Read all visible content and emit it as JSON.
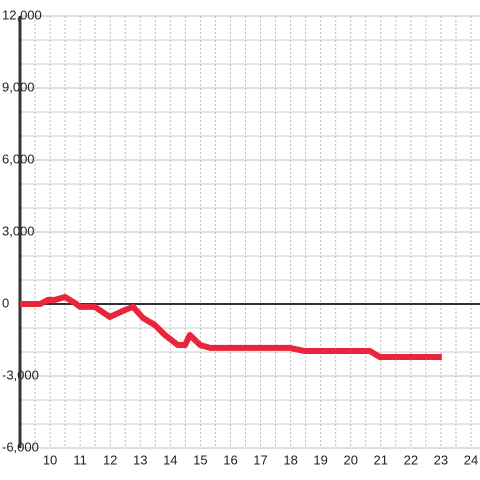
{
  "chart_data": {
    "type": "line",
    "x": [
      9.0,
      9.67,
      9.93,
      10.16,
      10.5,
      10.83,
      11.0,
      11.49,
      11.99,
      12.49,
      12.76,
      13.09,
      13.49,
      13.82,
      14.25,
      14.49,
      14.65,
      14.99,
      15.32,
      17.98,
      18.31,
      18.48,
      20.64,
      20.97,
      23.03
    ],
    "series": [
      {
        "color": "#e8253a",
        "values": [
          0,
          0,
          170,
          170,
          290,
          40,
          -120,
          -120,
          -540,
          -250,
          -120,
          -580,
          -880,
          -1290,
          -1710,
          -1710,
          -1290,
          -1710,
          -1830,
          -1830,
          -1920,
          -1960,
          -1960,
          -2210,
          -2210
        ]
      }
    ],
    "xlim": [
      9,
      24.3
    ],
    "xticks": [
      10,
      11,
      12,
      13,
      14,
      15,
      16,
      17,
      18,
      19,
      20,
      21,
      22,
      23,
      24
    ],
    "minor_xticks": [
      9.5,
      10.5,
      11.5,
      12.5,
      13.5,
      14.5,
      15.5,
      16.5,
      17.5,
      18.5,
      19.5,
      20.5,
      21.5,
      22.5,
      23.5
    ],
    "ylim": [
      -6000,
      12000
    ],
    "yticks": [
      {
        "value": -6000,
        "label": "-6,000"
      },
      {
        "value": -3000,
        "label": "-3,000"
      },
      0,
      {
        "value": 3000,
        "label": "3,000"
      },
      {
        "value": 6000,
        "label": "6,000"
      },
      {
        "value": 9000,
        "label": "9,000"
      },
      {
        "value": 12000,
        "label": "12,000"
      }
    ],
    "minor_yticks": [
      -5000,
      -4000,
      -2000,
      -1000,
      1000,
      2000,
      4000,
      5000,
      7000,
      8000,
      10000,
      11000
    ],
    "grid": true
  }
}
